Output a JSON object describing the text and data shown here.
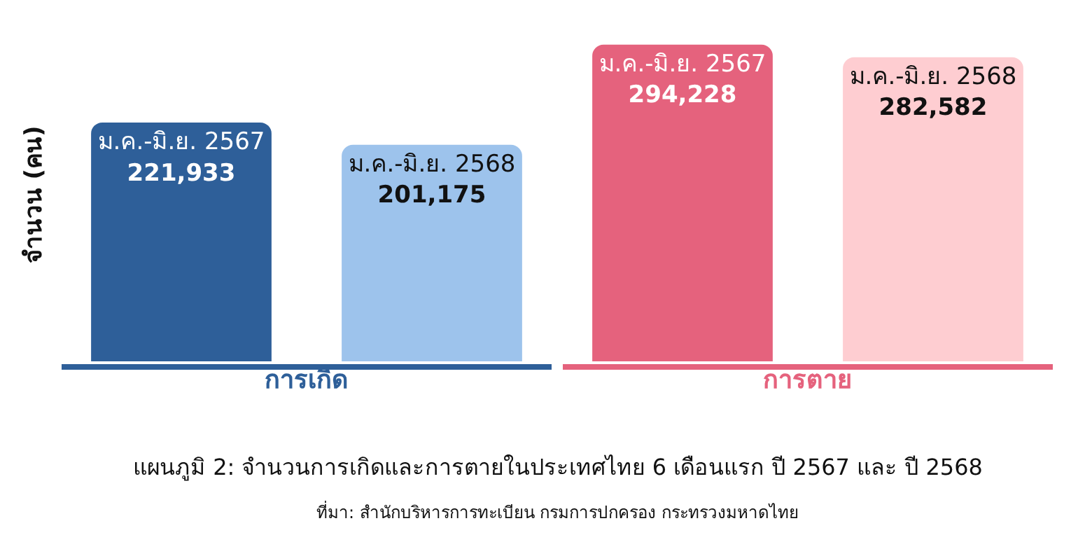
{
  "chart_data": {
    "type": "bar",
    "title": "แผนภูมิ 2: จำนวนการเกิดและการตายในประเทศไทย 6 เดือนแรก ปี 2567 และ ปี 2568",
    "ylabel": "จำนวน (คน)",
    "categories": [
      "การเกิด",
      "การตาย"
    ],
    "series": [
      {
        "name": "ม.ค.-มิ.ย. 2567",
        "colors": [
          "#2e5f99",
          "#e5627d"
        ],
        "values": [
          221933,
          294228
        ],
        "value_labels": [
          "221,933",
          "294,228"
        ]
      },
      {
        "name": "ม.ค.-มิ.ย. 2568",
        "colors": [
          "#9dc3ec",
          "#fecdd1"
        ],
        "values": [
          201175,
          282582
        ],
        "value_labels": [
          "201,175",
          "282,582"
        ]
      }
    ],
    "tick_labels": "x",
    "annotations": [
      "ที่มา: สำนักบริหารการทะเบียน กรมการปกครอง กระทรวงมหาดไทย"
    ]
  }
}
